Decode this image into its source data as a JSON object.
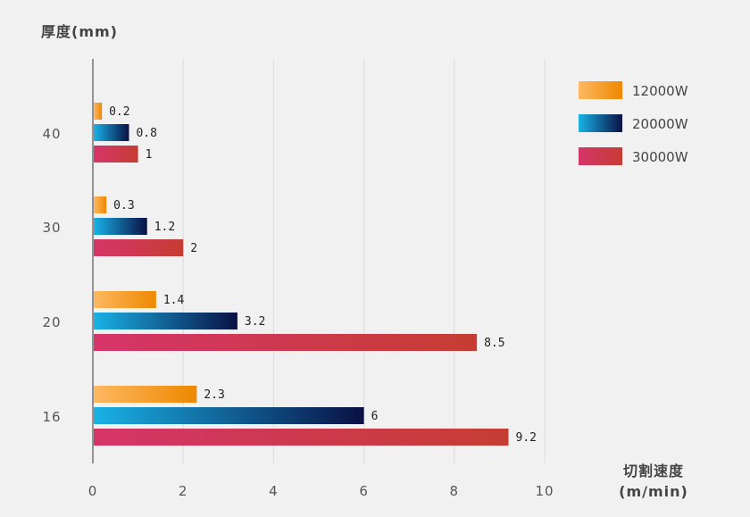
{
  "chart_data": {
    "type": "bar",
    "orientation": "horizontal",
    "ylabel": "厚度(mm)",
    "xlabel_line1": "切割速度",
    "xlabel_line2": "(m/min)",
    "categories": [
      "40",
      "30",
      "20",
      "16"
    ],
    "series": [
      {
        "name": "12000W",
        "values": [
          0.2,
          0.3,
          1.4,
          2.3
        ],
        "gradient": [
          "#fdb862",
          "#ee8800"
        ]
      },
      {
        "name": "20000W",
        "values": [
          0.8,
          1.2,
          3.2,
          6
        ],
        "gradient": [
          "#19b2e6",
          "#0a1044"
        ]
      },
      {
        "name": "30000W",
        "values": [
          1,
          2,
          8.5,
          9.2
        ],
        "gradient": [
          "#d6356a",
          "#c63c32"
        ]
      }
    ],
    "value_labels": [
      [
        "0.2",
        "0.3",
        "1.4",
        "2.3"
      ],
      [
        "0.8",
        "1.2",
        "3.2",
        "6"
      ],
      [
        "1",
        "2",
        "8.5",
        "9.2"
      ]
    ],
    "xticks": [
      "0",
      "2",
      "4",
      "6",
      "8",
      "10"
    ],
    "xlim": [
      0,
      10
    ],
    "grid": true,
    "legend_position": "top-right"
  }
}
